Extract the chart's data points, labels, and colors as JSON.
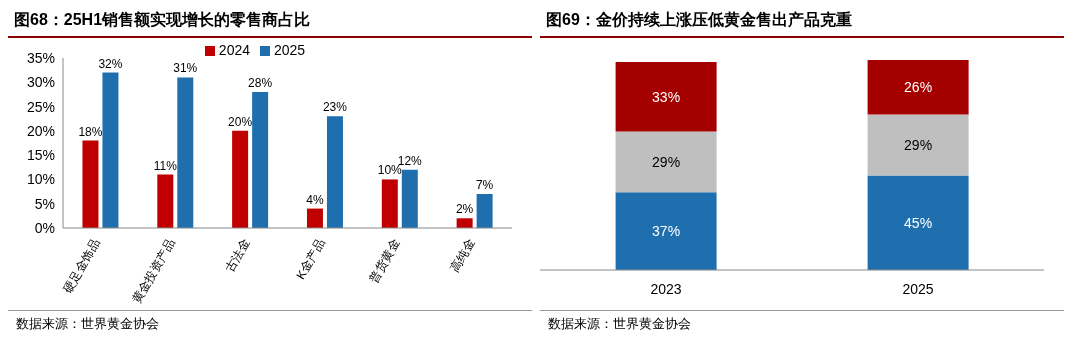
{
  "chart_data": [
    {
      "type": "bar",
      "title": "图68：25H1销售额实现增长的零售商占比",
      "categories": [
        "硬足金饰品",
        "黄金投资产品",
        "古法金",
        "K金产品",
        "普货黄金",
        "高纯金"
      ],
      "series": [
        {
          "name": "2024",
          "color": "#c00000",
          "values": [
            18,
            11,
            20,
            4,
            10,
            2
          ],
          "value_labels": [
            "18%",
            "11%",
            "20%",
            "4%",
            "10%",
            "2%"
          ]
        },
        {
          "name": "2025",
          "color": "#1f6faf",
          "values": [
            32,
            31,
            28,
            23,
            12,
            7
          ],
          "value_labels": [
            "32%",
            "31%",
            "28%",
            "23%",
            "12%",
            "7%"
          ]
        }
      ],
      "ylim": [
        0,
        35
      ],
      "yticks": [
        {
          "value": 0,
          "label": "0%"
        },
        {
          "value": 5,
          "label": "5%"
        },
        {
          "value": 10,
          "label": "10%"
        },
        {
          "value": 15,
          "label": "15%"
        },
        {
          "value": 20,
          "label": "20%"
        },
        {
          "value": 25,
          "label": "25%"
        },
        {
          "value": 30,
          "label": "30%"
        },
        {
          "value": 35,
          "label": "35%"
        }
      ],
      "legend": "top",
      "grid": false,
      "annotations": [
        "数据来源：世界黄金协会"
      ]
    },
    {
      "type": "bar",
      "title": "图69：金价持续上涨压低黄金售出产品克重",
      "categories": [
        "2023",
        "2025"
      ],
      "stacked": true,
      "tick_labels": "x",
      "legend": false,
      "grid": false,
      "series": [
        {
          "color": "#1f6faf",
          "values": [
            37,
            45
          ],
          "value_labels": [
            "37%",
            "45%"
          ]
        },
        {
          "color": "#bfbfbf",
          "values": [
            29,
            29
          ],
          "value_labels": [
            "29%",
            "29%"
          ]
        },
        {
          "color": "#a50000",
          "values": [
            33,
            26
          ],
          "value_labels": [
            "33%",
            "26%"
          ]
        }
      ],
      "annotations": [
        "数据来源：世界黄金协会"
      ]
    }
  ]
}
